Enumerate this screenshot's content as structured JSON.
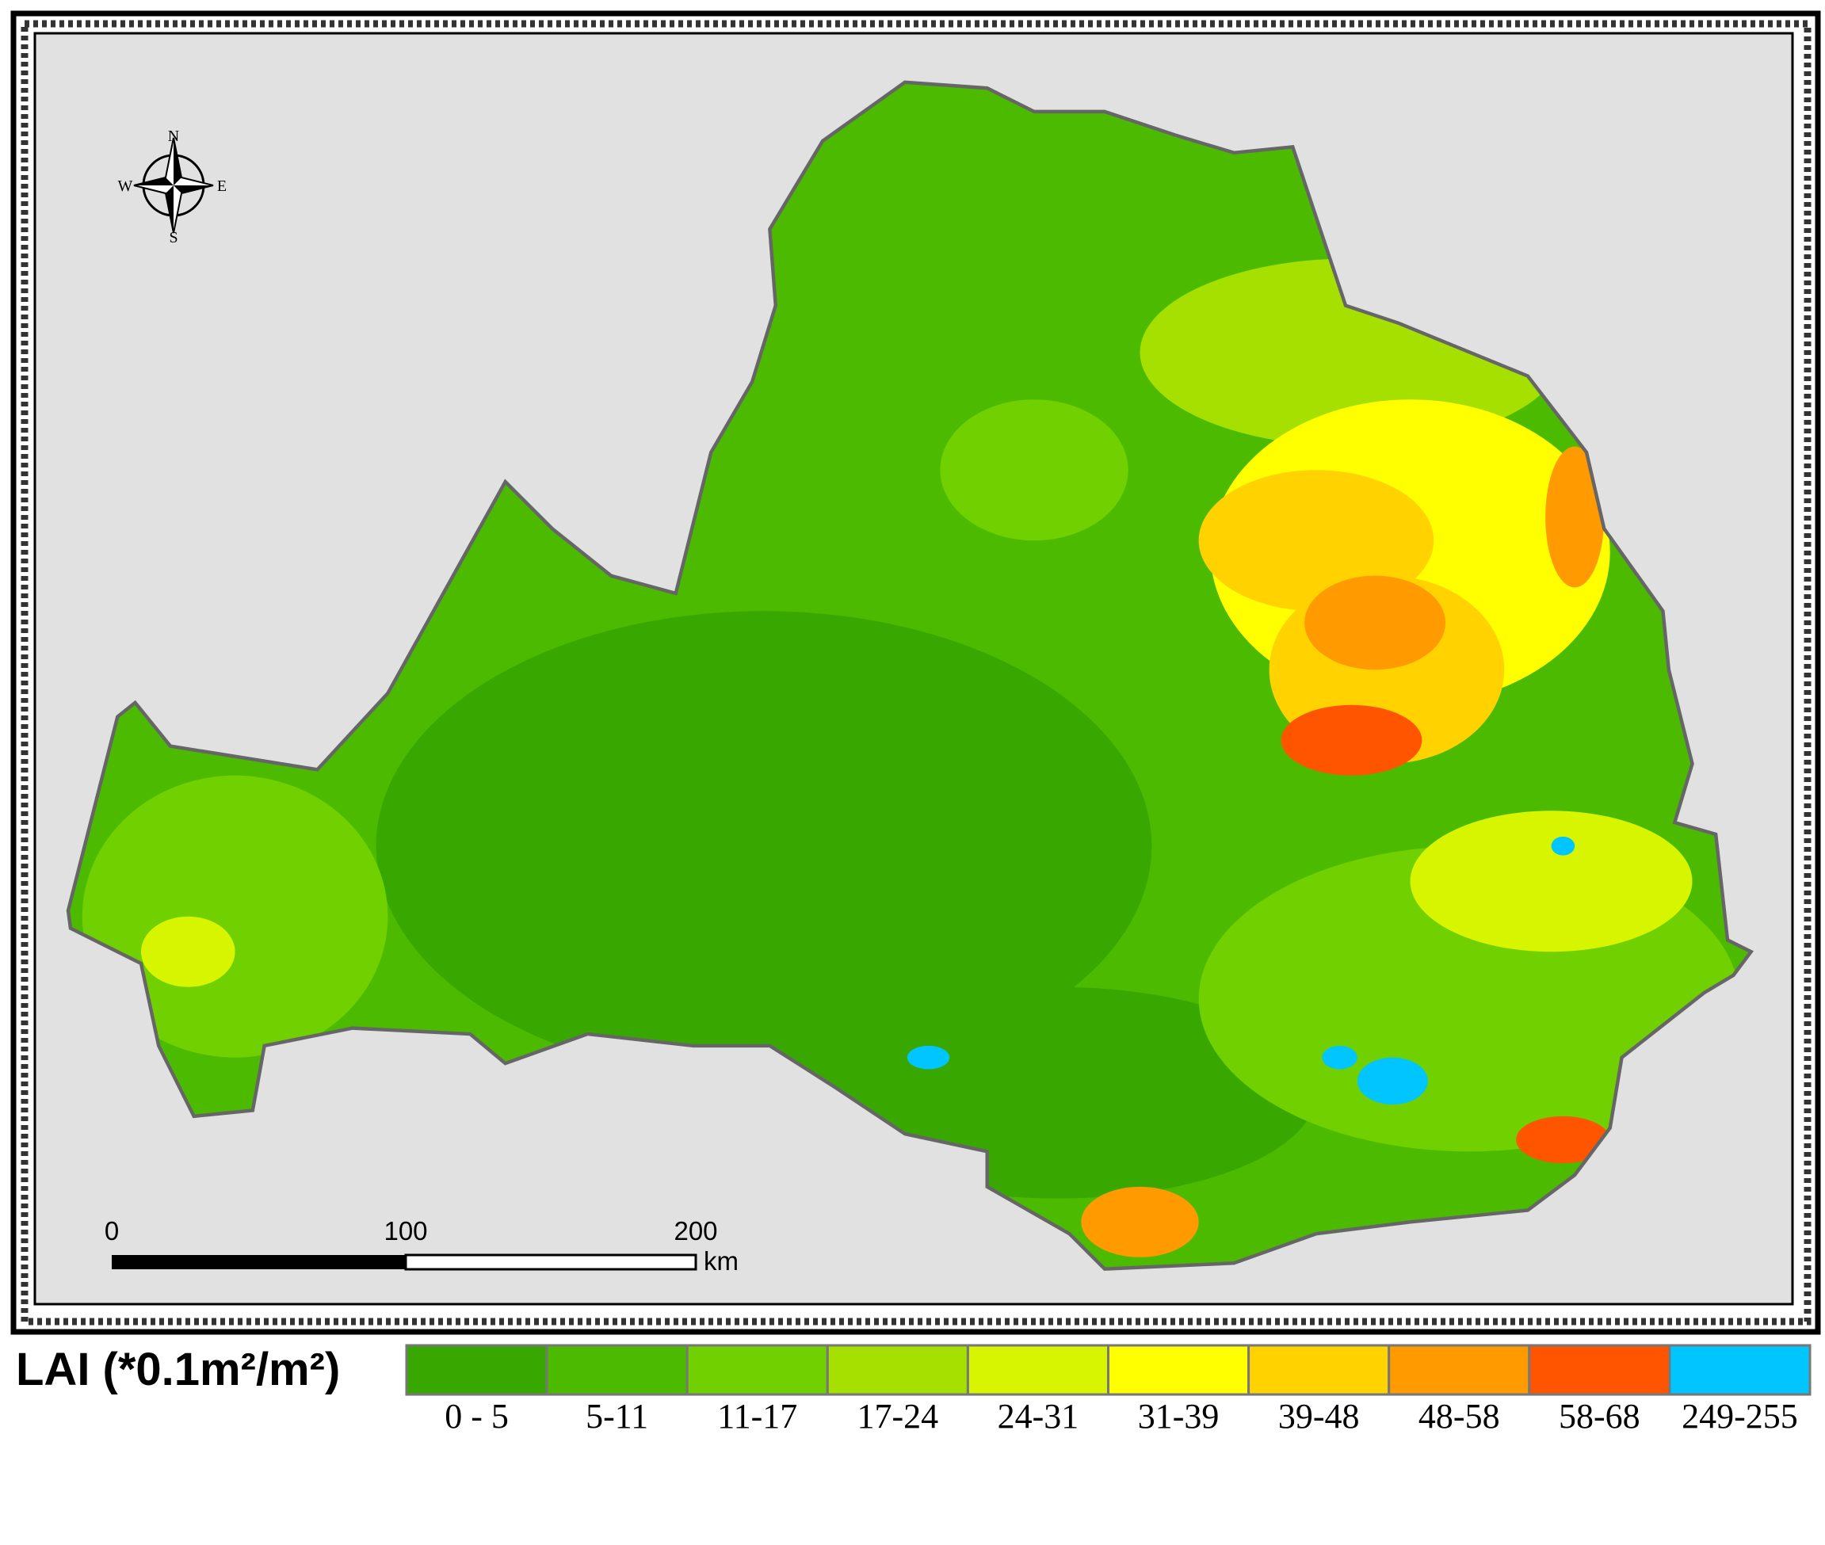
{
  "compass": {
    "north": "N",
    "east": "E",
    "south": "S",
    "west": "W"
  },
  "scale_bar": {
    "labels": [
      "0",
      "100",
      "200"
    ],
    "unit": "km"
  },
  "legend": {
    "title": "LAI (*0.1m²/m²)",
    "classes": [
      {
        "label": "0 - 5",
        "color": "#38a800"
      },
      {
        "label": "5-11",
        "color": "#4cbb00"
      },
      {
        "label": "11-17",
        "color": "#70d000"
      },
      {
        "label": "17-24",
        "color": "#a5e000"
      },
      {
        "label": "24-31",
        "color": "#d8f500"
      },
      {
        "label": "31-39",
        "color": "#ffff00"
      },
      {
        "label": "39-48",
        "color": "#ffd200"
      },
      {
        "label": "48-58",
        "color": "#ff9a00"
      },
      {
        "label": "58-68",
        "color": "#ff5500"
      },
      {
        "label": "249-255",
        "color": "#00c5ff"
      }
    ]
  }
}
